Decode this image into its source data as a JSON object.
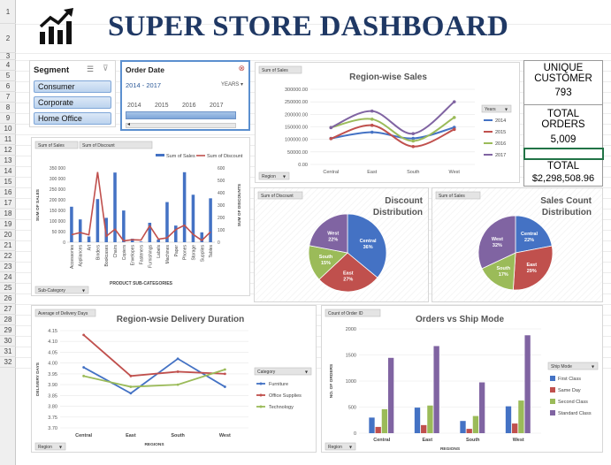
{
  "dashboard_title": "SUPER STORE DASHBOARD",
  "row_numbers": [
    "1",
    "2",
    "3",
    "4",
    "5",
    "6",
    "7",
    "8",
    "9",
    "10",
    "11",
    "12",
    "13",
    "14",
    "15",
    "16",
    "17",
    "18",
    "19",
    "20",
    "21",
    "22",
    "23",
    "24",
    "25",
    "26",
    "27",
    "28",
    "29",
    "30",
    "31",
    "32"
  ],
  "segment_slicer": {
    "title": "Segment",
    "items": [
      "Consumer",
      "Corporate",
      "Home Office"
    ]
  },
  "date_slicer": {
    "title": "Order Date",
    "range": "2014 - 2017",
    "level": "YEARS",
    "years": [
      "2014",
      "2015",
      "2016",
      "2017"
    ]
  },
  "kpis": [
    {
      "label": "UNIQUE CUSTOMER",
      "value": "793"
    },
    {
      "label": "TOTAL ORDERS",
      "value": "5,009"
    },
    {
      "label": "TOTAL",
      "value": "$2,298,508.96"
    }
  ],
  "colors": {
    "blue": "#4472c4",
    "red": "#c0504d",
    "green": "#9bbb59",
    "purple": "#8064a2",
    "title": "#1f3864"
  },
  "chart_data": [
    {
      "id": "region_sales",
      "type": "line",
      "title": "Region-wise Sales",
      "field_button": "Sum of Sales",
      "axis_button": "Region",
      "legend_title": "Years",
      "categories": [
        "Central",
        "East",
        "South",
        "West"
      ],
      "ylim": [
        0,
        300000
      ],
      "yticks": [
        "0.00",
        "50000.00",
        "100000.00",
        "150000.00",
        "200000.00",
        "250000.00",
        "300000.00"
      ],
      "series": [
        {
          "name": "2014",
          "color": "#4472c4",
          "values": [
            103838,
            128680,
            103846,
            147883
          ]
        },
        {
          "name": "2015",
          "color": "#c0504d",
          "values": [
            102875,
            156332,
            71360,
            139966
          ]
        },
        {
          "name": "2016",
          "color": "#9bbb59",
          "values": [
            147429,
            180686,
            93610,
            187480
          ]
        },
        {
          "name": "2017",
          "color": "#8064a2",
          "values": [
            147098,
            213083,
            122906,
            250128
          ]
        }
      ]
    },
    {
      "id": "subcategory",
      "type": "bar",
      "field_buttons": [
        "Sum of Sales",
        "Sum of Discount"
      ],
      "axis_button": "Sub-Category",
      "xlabel": "PRODUCT SUB-CATEGORIES",
      "ylabel": "SUM OF SALES",
      "y2label": "SUM OF DISCOUNTS",
      "ylim": [
        0,
        350000
      ],
      "yticks": [
        "0",
        "50 000",
        "100 000",
        "150 000",
        "200 000",
        "250 000",
        "300 000",
        "350 000"
      ],
      "y2lim": [
        0,
        600
      ],
      "y2ticks": [
        "0",
        "100",
        "200",
        "300",
        "400",
        "500",
        "600"
      ],
      "categories": [
        "Accessories",
        "Appliances",
        "Art",
        "Binders",
        "Bookcases",
        "Chairs",
        "Copiers",
        "Envelopes",
        "Fasteners",
        "Furnishings",
        "Labels",
        "Machines",
        "Paper",
        "Phones",
        "Storage",
        "Supplies",
        "Tables"
      ],
      "series": [
        {
          "name": "Sum of Sales",
          "color": "#4472c4",
          "values": [
            167380,
            107532,
            27119,
            203413,
            114880,
            328449,
            149528,
            16476,
            3024,
            91705,
            12486,
            189239,
            78479,
            330007,
            223844,
            46674,
            206966
          ]
        },
        {
          "name": "Sum of Discount",
          "color": "#c0504d",
          "values": [
            60.8,
            77.6,
            59.6,
            567.0,
            48.14,
            105.0,
            11.0,
            20.4,
            17.8,
            132.4,
            25.0,
            35.2,
            102.6,
            137.4,
            63.2,
            14.6,
            83.35
          ]
        }
      ]
    },
    {
      "id": "discount_distribution",
      "type": "pie",
      "title": "Discount Distribution",
      "field_button": "Sum of Discount",
      "categories": [
        "Central",
        "East",
        "South",
        "West"
      ],
      "values": [
        36,
        27,
        15,
        22
      ],
      "labels": [
        "36%",
        "27%",
        "15%",
        "22%"
      ],
      "colors": [
        "#4472c4",
        "#c0504d",
        "#9bbb59",
        "#8064a2"
      ]
    },
    {
      "id": "sales_count",
      "type": "pie",
      "title": "Sales Count Distribution",
      "field_button": "Sum of Sales",
      "categories": [
        "Central",
        "East",
        "South",
        "West"
      ],
      "values": [
        22,
        29,
        17,
        32
      ],
      "labels": [
        "22%",
        "29%",
        "17%",
        "32%"
      ],
      "colors": [
        "#4472c4",
        "#c0504d",
        "#9bbb59",
        "#8064a2"
      ]
    },
    {
      "id": "delivery_duration",
      "type": "line",
      "title": "Region-wsie Delivery Duration",
      "field_button": "Average of Delivery Days",
      "axis_button": "Region",
      "legend_title": "Category",
      "xlabel": "REGIONS",
      "ylabel": "DELIVERY DAYS",
      "categories": [
        "Central",
        "East",
        "South",
        "West"
      ],
      "ylim": [
        3.7,
        4.15
      ],
      "yticks": [
        "3.70",
        "3.75",
        "3.80",
        "3.85",
        "3.90",
        "3.95",
        "4.00",
        "4.05",
        "4.10",
        "4.15"
      ],
      "series": [
        {
          "name": "Furniture",
          "color": "#4472c4",
          "values": [
            3.98,
            3.86,
            4.02,
            3.89
          ]
        },
        {
          "name": "Office Supplies",
          "color": "#c0504d",
          "values": [
            4.13,
            3.94,
            3.96,
            3.95
          ]
        },
        {
          "name": "Technology",
          "color": "#9bbb59",
          "values": [
            3.94,
            3.89,
            3.9,
            3.97
          ]
        }
      ]
    },
    {
      "id": "ship_mode",
      "type": "bar",
      "title": "Orders vs Ship Mode",
      "field_button": "Count of Order ID",
      "axis_button": "Region",
      "legend_title": "Ship Mode",
      "xlabel": "REGIONS",
      "ylabel": "NO. OF ORDERS",
      "categories": [
        "Central",
        "East",
        "South",
        "West"
      ],
      "ylim": [
        0,
        2000
      ],
      "yticks": [
        "0",
        "500",
        "1000",
        "1500",
        "2000"
      ],
      "series": [
        {
          "name": "First Class",
          "color": "#4472c4",
          "values": [
            299,
            490,
            234,
            515
          ]
        },
        {
          "name": "Same Day",
          "color": "#c0504d",
          "values": [
            120,
            155,
            83,
            185
          ]
        },
        {
          "name": "Second Class",
          "color": "#9bbb59",
          "values": [
            460,
            530,
            329,
            626
          ]
        },
        {
          "name": "Standard Class",
          "color": "#8064a2",
          "values": [
            1444,
            1670,
            974,
            1877
          ]
        }
      ]
    }
  ]
}
